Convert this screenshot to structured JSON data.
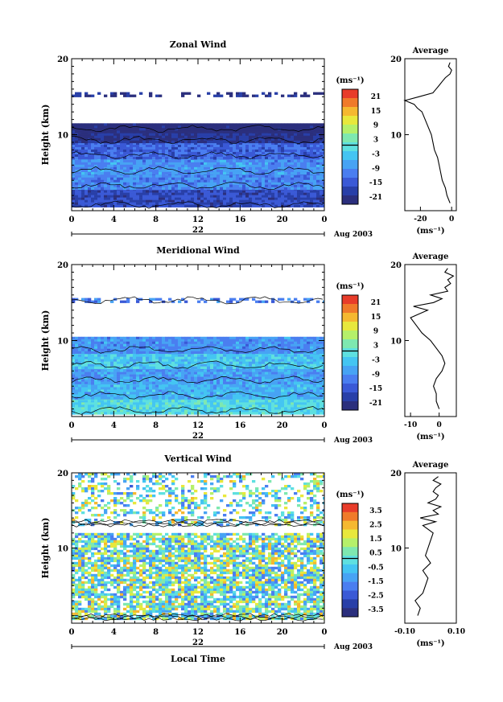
{
  "figure": {
    "time_label": "Local Time",
    "month_label": "Aug 2003",
    "date_label": "22",
    "time_ticks": [
      "0",
      "4",
      "8",
      "12",
      "16",
      "20",
      "0"
    ],
    "height_ticks": [
      "10",
      "20"
    ],
    "height_label": "Height (km)",
    "avg_title": "Average",
    "unit_label": "(ms⁻¹)",
    "colormap": [
      "#2b2f7d",
      "#283fa8",
      "#3a59d6",
      "#4a7ef0",
      "#47a3f4",
      "#44c5f2",
      "#5ee0e0",
      "#7ee8b0",
      "#b5f06a",
      "#e8e83c",
      "#f5b830",
      "#f07a2a",
      "#e83c2a"
    ]
  },
  "chart_data": [
    {
      "type": "heatmap",
      "title": "Zonal Wind",
      "xlabel": "",
      "ylabel": "Height (km)",
      "x_ticks": [
        "0",
        "4",
        "8",
        "12",
        "16",
        "20",
        "0"
      ],
      "ylim": [
        0,
        20
      ],
      "colorbar_unit": "(ms⁻¹)",
      "colorbar_ticks": [
        "21",
        "15",
        "9",
        "3",
        "-3",
        "-9",
        "-15",
        "-21"
      ],
      "bands": [
        {
          "y0": 0.5,
          "y1": 3.0,
          "value": -15
        },
        {
          "y0": 3.0,
          "y1": 5.0,
          "value": -9
        },
        {
          "y0": 5.0,
          "y1": 7.0,
          "value": -8
        },
        {
          "y0": 7.0,
          "y1": 9.0,
          "value": -12
        },
        {
          "y0": 9.0,
          "y1": 10.5,
          "value": -18
        },
        {
          "y0": 10.5,
          "y1": 11.5,
          "value": -21
        },
        {
          "y0": 15.0,
          "y1": 15.6,
          "value": -18
        }
      ],
      "average": {
        "xlim": [
          -30,
          3
        ],
        "x_ticks": [
          "-20",
          "0"
        ],
        "xlabel": "(ms⁻¹)",
        "height": [
          1,
          2,
          3,
          4,
          5,
          6,
          7,
          8,
          9,
          10,
          11,
          12,
          13,
          13.5,
          14,
          14.5,
          15,
          15.5,
          16,
          16.5,
          17,
          17.5,
          18,
          18.5,
          19,
          19.5
        ],
        "value": [
          -1,
          -3,
          -4,
          -6,
          -7,
          -8,
          -9,
          -11,
          -12,
          -13,
          -15,
          -17,
          -19,
          -22,
          -24,
          -30,
          -21,
          -12,
          -10,
          -8,
          -6,
          -4,
          -1,
          0,
          -2,
          -1
        ]
      }
    },
    {
      "type": "heatmap",
      "title": "Meridional Wind",
      "xlabel": "",
      "ylabel": "Height (km)",
      "x_ticks": [
        "0",
        "4",
        "8",
        "12",
        "16",
        "20",
        "0"
      ],
      "ylim": [
        0,
        20
      ],
      "colorbar_unit": "(ms⁻¹)",
      "colorbar_ticks": [
        "21",
        "15",
        "9",
        "3",
        "-3",
        "-9",
        "-15",
        "-21"
      ],
      "bands": [
        {
          "y0": 0.5,
          "y1": 2.5,
          "value": -1
        },
        {
          "y0": 2.5,
          "y1": 4.5,
          "value": -5
        },
        {
          "y0": 4.5,
          "y1": 6.5,
          "value": -7
        },
        {
          "y0": 6.5,
          "y1": 8.5,
          "value": -3
        },
        {
          "y0": 8.5,
          "y1": 10.5,
          "value": -8
        },
        {
          "y0": 15.0,
          "y1": 15.6,
          "value": -10
        }
      ],
      "average": {
        "xlim": [
          -12,
          6
        ],
        "x_ticks": [
          "-10",
          "0"
        ],
        "xlabel": "(ms⁻¹)",
        "height": [
          1,
          2,
          3,
          4,
          5,
          6,
          7,
          8,
          9,
          10,
          11,
          12,
          13,
          13.5,
          14,
          14.5,
          15,
          15.5,
          16,
          16.5,
          17,
          17.5,
          18,
          18.5,
          19,
          19.5
        ],
        "value": [
          0,
          -1,
          -1,
          -2,
          -1,
          1,
          2,
          1,
          -1,
          -3,
          -6,
          -8,
          -10,
          -7,
          -4,
          -9,
          -2,
          1,
          -3,
          3,
          2,
          4,
          3,
          5,
          2,
          3
        ]
      }
    },
    {
      "type": "heatmap",
      "title": "Vertical Wind",
      "xlabel": "Local Time",
      "ylabel": "Height (km)",
      "x_ticks": [
        "0",
        "4",
        "8",
        "12",
        "16",
        "20",
        "0"
      ],
      "ylim": [
        0,
        20
      ],
      "colorbar_unit": "(ms⁻¹)",
      "colorbar_ticks": [
        "3.5",
        "2.5",
        "1.5",
        "0.5",
        "-0.5",
        "-1.5",
        "-2.5",
        "-3.5"
      ],
      "bands": [
        {
          "y0": 0.5,
          "y1": 12.0,
          "value": 0.2
        },
        {
          "y0": 13.0,
          "y1": 20.0,
          "value": 0.1
        }
      ],
      "average": {
        "xlim": [
          -0.1,
          0.1
        ],
        "x_ticks": [
          "-0.10",
          "0.10"
        ],
        "xlabel": "(ms⁻¹)",
        "height": [
          1,
          2,
          3,
          4,
          5,
          6,
          7,
          8,
          9,
          10,
          11,
          12,
          13,
          13.5,
          14,
          14.5,
          15,
          15.5,
          16,
          16.5,
          17,
          17.5,
          18,
          18.5,
          19,
          19.5
        ],
        "value": [
          -0.05,
          -0.04,
          -0.06,
          -0.03,
          -0.02,
          -0.01,
          -0.03,
          0.0,
          -0.02,
          -0.01,
          0.0,
          0.01,
          -0.03,
          0.02,
          -0.04,
          0.03,
          0.01,
          0.04,
          -0.01,
          0.02,
          0.03,
          0.01,
          0.02,
          0.04,
          0.01,
          0.03
        ]
      }
    }
  ]
}
